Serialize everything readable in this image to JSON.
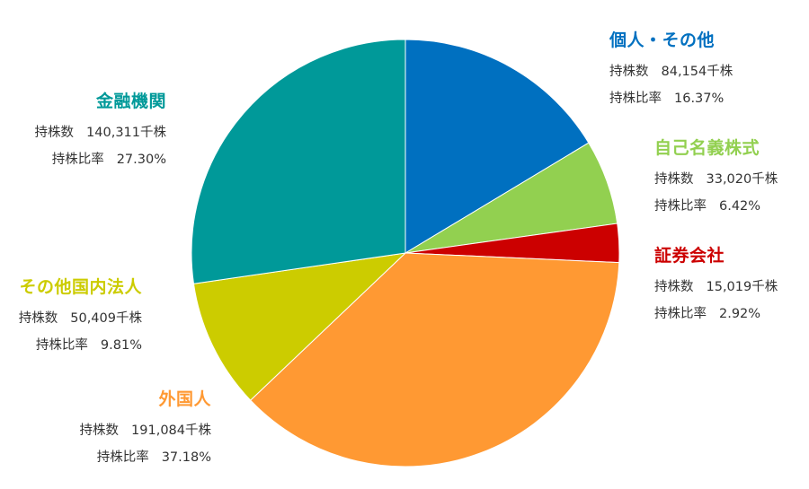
{
  "chart_data": {
    "type": "pie",
    "title": "",
    "slices": [
      {
        "name": "個人・その他",
        "shares_label": "持株数",
        "shares": "84,154千株",
        "ratio_label": "持株比率",
        "ratio": "16.37%",
        "value": 16.37,
        "color": "#0070C0"
      },
      {
        "name": "自己名義株式",
        "shares_label": "持株数",
        "shares": "33,020千株",
        "ratio_label": "持株比率",
        "ratio": "6.42%",
        "value": 6.42,
        "color": "#92D050"
      },
      {
        "name": "証券会社",
        "shares_label": "持株数",
        "shares": "15,019千株",
        "ratio_label": "持株比率",
        "ratio": "2.92%",
        "value": 2.92,
        "color": "#CC0000"
      },
      {
        "name": "外国人",
        "shares_label": "持株数",
        "shares": "191,084千株",
        "ratio_label": "持株比率",
        "ratio": "37.18%",
        "value": 37.18,
        "color": "#FF9933"
      },
      {
        "name": "その他国内法人",
        "shares_label": "持株数",
        "shares": "50,409千株",
        "ratio_label": "持株比率",
        "ratio": "9.81%",
        "value": 9.81,
        "color": "#CCCC00"
      },
      {
        "name": "金融機関",
        "shares_label": "持株数",
        "shares": "140,311千株",
        "ratio_label": "持株比率",
        "ratio": "27.30%",
        "value": 27.3,
        "color": "#009999"
      }
    ],
    "start_position": "12 o'clock",
    "direction": "clockwise",
    "legend": "callouts beside slices"
  }
}
